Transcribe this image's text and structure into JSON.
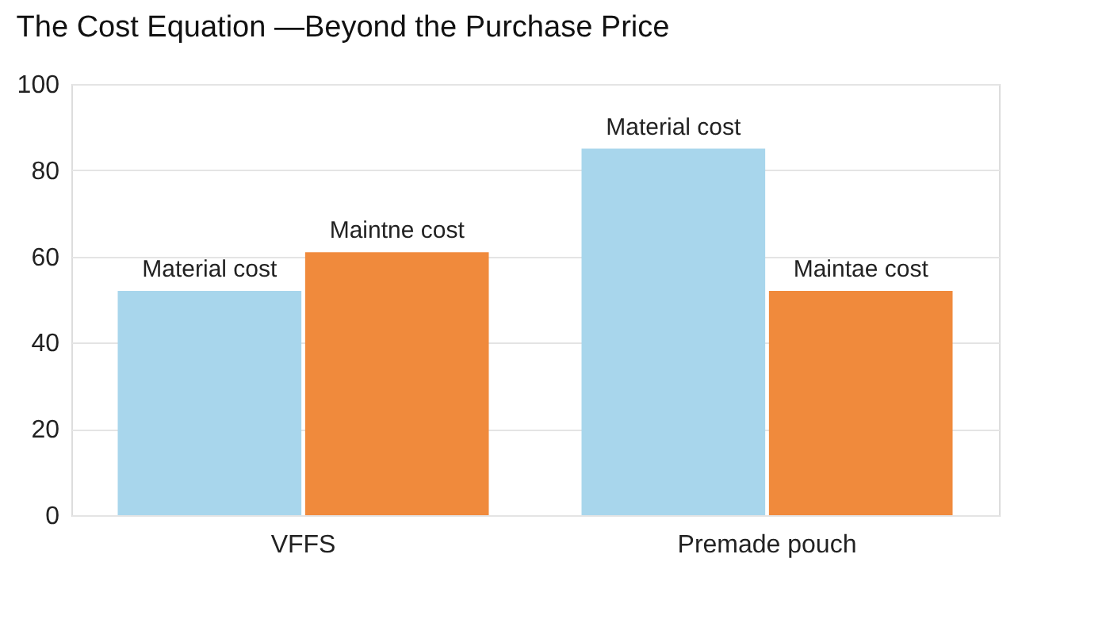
{
  "chart_data": {
    "type": "bar",
    "title": "The Cost Equation —Beyond the Purchase Price",
    "categories": [
      "VFFS",
      "Premade pouch"
    ],
    "series": [
      {
        "color": "#a8d6ec",
        "values": [
          52,
          85
        ]
      },
      {
        "color": "#f08a3c",
        "values": [
          61,
          52
        ]
      }
    ],
    "annotations": [
      {
        "text": "Material cost",
        "x": "VFFS",
        "y": 52
      },
      {
        "text": "Maintne cost",
        "x": "VFFS",
        "y": 61
      },
      {
        "text": "Material cost",
        "x": "Premade pouch",
        "y": 85
      },
      {
        "text": "Maintae cost",
        "x": "Premade pouch",
        "y": 52
      }
    ],
    "ylim": [
      0,
      100
    ],
    "yticks": [
      0,
      20,
      40,
      60,
      80,
      100
    ],
    "grid": "y"
  }
}
